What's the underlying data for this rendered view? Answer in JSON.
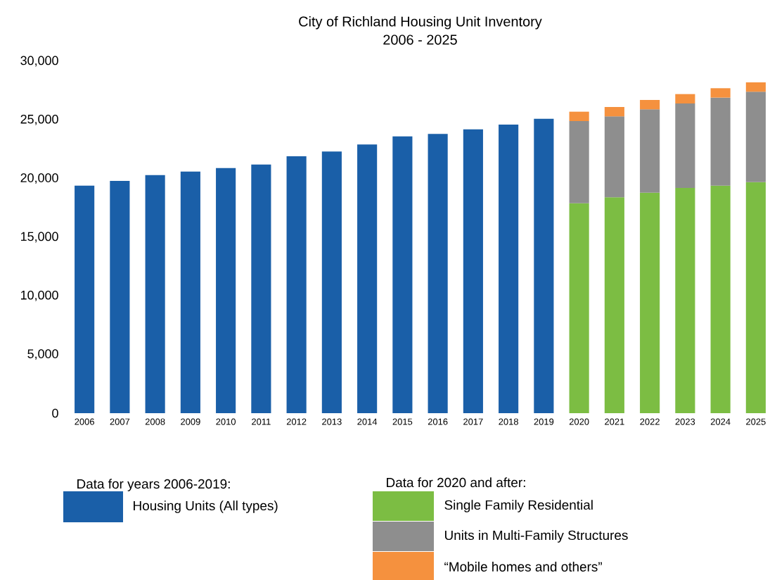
{
  "chart_data": {
    "type": "bar",
    "stacked": true,
    "title": "City of Richland Housing Unit Inventory",
    "subtitle": "2006 - 2025",
    "categories": [
      "2006",
      "2007",
      "2008",
      "2009",
      "2010",
      "2011",
      "2012",
      "2013",
      "2014",
      "2015",
      "2016",
      "2017",
      "2018",
      "2019",
      "2020",
      "2021",
      "2022",
      "2023",
      "2024",
      "2025"
    ],
    "series": [
      {
        "name": "Housing Units (All types)",
        "color": "#1a5fa8",
        "values": [
          19400,
          19800,
          20300,
          20600,
          20900,
          21200,
          21900,
          22300,
          22900,
          23600,
          23800,
          24200,
          24600,
          25100,
          null,
          null,
          null,
          null,
          null,
          null
        ]
      },
      {
        "name": "Single Family Residential",
        "color": "#7cbd43",
        "values": [
          null,
          null,
          null,
          null,
          null,
          null,
          null,
          null,
          null,
          null,
          null,
          null,
          null,
          null,
          17900,
          18400,
          18800,
          19200,
          19400,
          19700
        ]
      },
      {
        "name": "Units in Multi-Family Structures",
        "color": "#8e8e8e",
        "values": [
          null,
          null,
          null,
          null,
          null,
          null,
          null,
          null,
          null,
          null,
          null,
          null,
          null,
          null,
          7000,
          6900,
          7100,
          7200,
          7500,
          7700
        ]
      },
      {
        "name": "“Mobile homes and others”",
        "color": "#f5913e",
        "values": [
          null,
          null,
          null,
          null,
          null,
          null,
          null,
          null,
          null,
          null,
          null,
          null,
          null,
          null,
          800,
          800,
          800,
          800,
          800,
          800
        ]
      }
    ],
    "ylim": [
      0,
      30000
    ],
    "yticks": [
      0,
      {
        "value": 5000,
        "label": "5,000"
      },
      {
        "value": 10000,
        "label": "10,000"
      },
      {
        "value": 15000,
        "label": "15,000"
      },
      {
        "value": 20000,
        "label": "20,000"
      },
      {
        "value": 25000,
        "label": "25,000"
      },
      {
        "value": 30000,
        "label": "30,000"
      }
    ],
    "legend": "bottom",
    "annotations": [
      "Data for years 2006-2019:",
      "Data for 2020 and after:"
    ]
  }
}
